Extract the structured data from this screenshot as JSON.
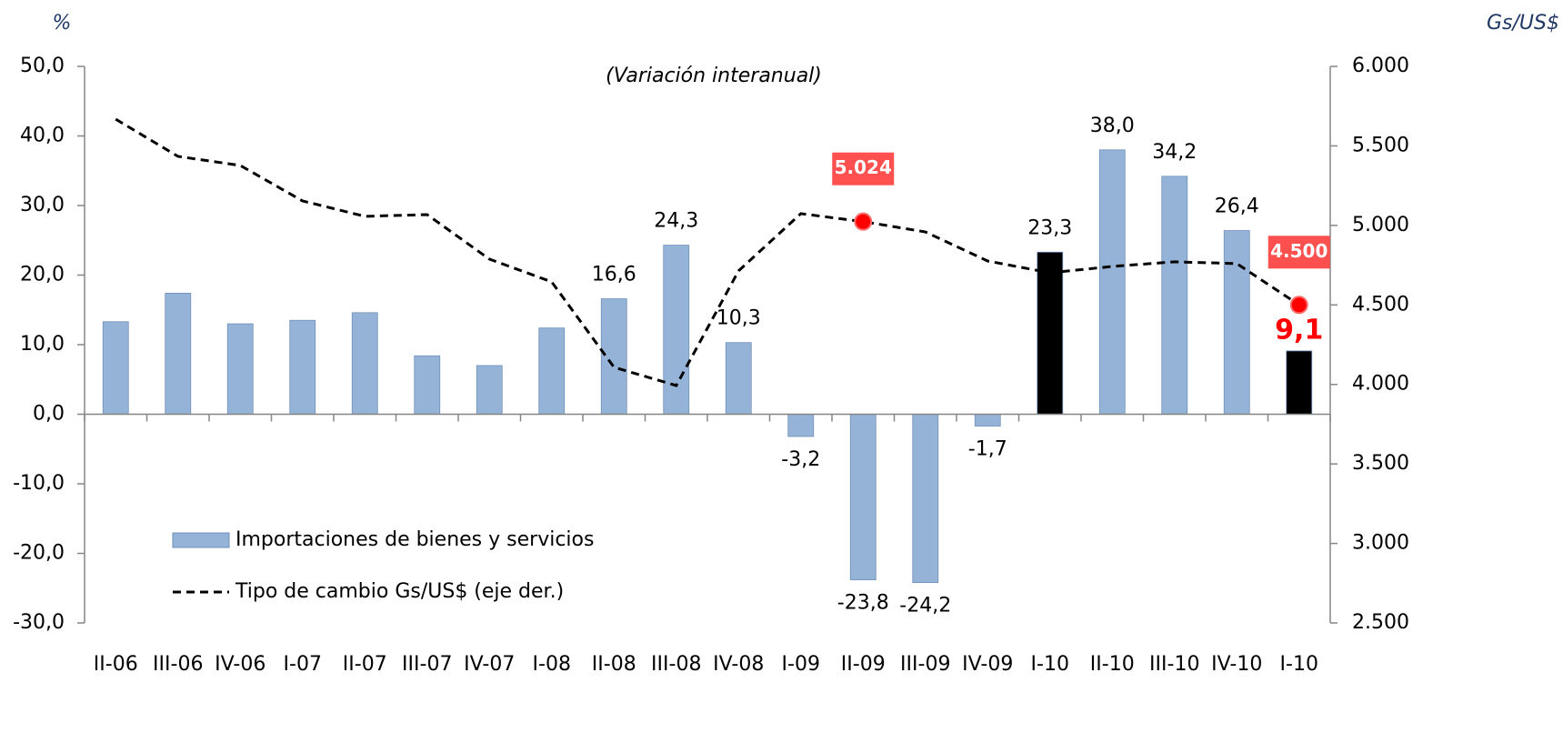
{
  "chart_data": {
    "type": "bar_line",
    "subtitle": "(Variación interanual)",
    "y_axis_label": "%",
    "y2_axis_label": "Gs/US$",
    "categories": [
      "II-06",
      "III-06",
      "IV-06",
      "I-07",
      "II-07",
      "III-07",
      "IV-07",
      "I-08",
      "II-08",
      "III-08",
      "IV-08",
      "I-09",
      "II-09",
      "III-09",
      "IV-09",
      "I-10",
      "II-10",
      "III-10",
      "IV-10",
      "I-10"
    ],
    "series": [
      {
        "name": "Importaciones de bienes y servicios",
        "kind": "bar",
        "color": "#95b3d7",
        "colors": [
          "#95b3d7",
          "#95b3d7",
          "#95b3d7",
          "#95b3d7",
          "#95b3d7",
          "#95b3d7",
          "#95b3d7",
          "#95b3d7",
          "#95b3d7",
          "#95b3d7",
          "#95b3d7",
          "#95b3d7",
          "#95b3d7",
          "#95b3d7",
          "#95b3d7",
          "#000000",
          "#95b3d7",
          "#95b3d7",
          "#95b3d7",
          "#000000"
        ],
        "values": [
          13.3,
          17.4,
          13.0,
          13.5,
          14.6,
          8.4,
          7.0,
          12.4,
          16.6,
          24.3,
          10.3,
          -3.2,
          -23.8,
          -24.2,
          -1.7,
          23.3,
          38.0,
          34.2,
          26.4,
          9.1
        ],
        "value_labels": [
          null,
          null,
          null,
          null,
          null,
          null,
          null,
          null,
          "16,6",
          "24,3",
          "10,3",
          "-3,2",
          "-23,8",
          "-24,2",
          "-1,7",
          "23,3",
          "38,0",
          "34,2",
          "26,4",
          "9,1"
        ]
      },
      {
        "name": "Tipo de cambio Gs/US$ (eje der.)",
        "kind": "line",
        "axis": "y2",
        "color": "#000000",
        "dashed": true,
        "values": [
          5668,
          5434,
          5377,
          5154,
          5057,
          5068,
          4788,
          4645,
          4108,
          3993,
          4714,
          5074,
          5024,
          4959,
          4776,
          4702,
          4742,
          4771,
          4760,
          4500
        ],
        "value_labels": [
          null,
          null,
          null,
          null,
          null,
          null,
          null,
          null,
          null,
          null,
          null,
          null,
          "5.024",
          null,
          null,
          null,
          null,
          null,
          null,
          "4.500"
        ]
      }
    ],
    "ylim": [
      -30,
      50
    ],
    "yticks": [
      {
        "value": -30,
        "label": "-30,0"
      },
      {
        "value": -20,
        "label": "-20,0"
      },
      {
        "value": -10,
        "label": "-10,0"
      },
      {
        "value": 0,
        "label": "0,0"
      },
      {
        "value": 10,
        "label": "10,0"
      },
      {
        "value": 20,
        "label": "20,0"
      },
      {
        "value": 30,
        "label": "30,0"
      },
      {
        "value": 40,
        "label": "40,0"
      },
      {
        "value": 50,
        "label": "50,0"
      }
    ],
    "y2lim": [
      2500,
      6000
    ],
    "y2ticks": [
      {
        "value": 2500,
        "label": "2.500"
      },
      {
        "value": 3000,
        "label": "3.000"
      },
      {
        "value": 3500,
        "label": "3.500"
      },
      {
        "value": 4000,
        "label": "4.000"
      },
      {
        "value": 4500,
        "label": "4.500"
      },
      {
        "value": 5000,
        "label": "5.000"
      },
      {
        "value": 5500,
        "label": "5.500"
      },
      {
        "value": 6000,
        "label": "6.000"
      }
    ],
    "grid": false
  }
}
